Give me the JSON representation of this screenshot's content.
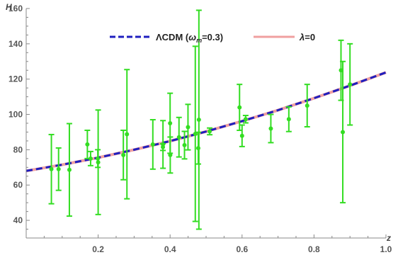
{
  "chart_data": {
    "type": "scatter",
    "title": "",
    "xlabel": "z",
    "ylabel": "H",
    "xlim": [
      0.0,
      1.0
    ],
    "ylim": [
      30,
      160
    ],
    "xticks": [
      0.2,
      0.4,
      0.6,
      0.8,
      1.0
    ],
    "yticks": [
      40,
      60,
      80,
      100,
      120,
      140,
      160
    ],
    "x_tick_labels": [
      "0.2",
      "0.4",
      "0.6",
      "0.8",
      "1.0"
    ],
    "y_tick_labels": [
      "40",
      "60",
      "80",
      "100",
      "120",
      "140",
      "160"
    ],
    "grid": false,
    "legend_position": "top",
    "legend": [
      {
        "label": "ΛCDM (",
        "label_sym": "ω",
        "label_sub": "m",
        "label_tail": "=0.3)",
        "color": "#1f1fbf",
        "style": "dashed"
      },
      {
        "label_sym": "λ",
        "label_tail": "=0",
        "color": "#f0a0a0",
        "style": "solid"
      }
    ],
    "series": [
      {
        "kind": "curve",
        "style": "solid",
        "color": "#f0a0a0",
        "x": [
          0.0,
          0.1,
          0.2,
          0.3,
          0.4,
          0.5,
          0.6,
          0.7,
          0.8,
          0.9,
          1.0
        ],
        "y": [
          68.0,
          71.5,
          75.5,
          80.0,
          84.9,
          90.3,
          96.2,
          102.4,
          109.2,
          116.3,
          123.8
        ]
      },
      {
        "kind": "curve",
        "style": "dashed",
        "color": "#1f1fbf",
        "x": [
          0.0,
          0.1,
          0.2,
          0.3,
          0.4,
          0.5,
          0.6,
          0.7,
          0.8,
          0.9,
          1.0
        ],
        "y": [
          68.0,
          71.5,
          75.5,
          80.0,
          84.9,
          90.3,
          96.2,
          102.4,
          109.2,
          116.3,
          123.8
        ]
      },
      {
        "kind": "points",
        "color": "#33dd22",
        "points": [
          {
            "x": 0.07,
            "y": 69.0,
            "err": 19.6
          },
          {
            "x": 0.09,
            "y": 69.0,
            "err": 12.0
          },
          {
            "x": 0.12,
            "y": 68.6,
            "err": 26.2
          },
          {
            "x": 0.17,
            "y": 83.0,
            "err": 8.0
          },
          {
            "x": 0.179,
            "y": 75.0,
            "err": 4.0
          },
          {
            "x": 0.199,
            "y": 75.0,
            "err": 5.0
          },
          {
            "x": 0.2,
            "y": 72.9,
            "err": 29.6
          },
          {
            "x": 0.27,
            "y": 77.0,
            "err": 14.0
          },
          {
            "x": 0.28,
            "y": 88.8,
            "err": 36.6
          },
          {
            "x": 0.352,
            "y": 83.0,
            "err": 14.0
          },
          {
            "x": 0.38,
            "y": 81.5,
            "err": 1.9
          },
          {
            "x": 0.3802,
            "y": 83.0,
            "err": 13.5
          },
          {
            "x": 0.4,
            "y": 95.0,
            "err": 17.0
          },
          {
            "x": 0.4004,
            "y": 77.0,
            "err": 10.2
          },
          {
            "x": 0.4247,
            "y": 87.1,
            "err": 11.2
          },
          {
            "x": 0.44,
            "y": 82.6,
            "err": 7.8
          },
          {
            "x": 0.4497,
            "y": 92.8,
            "err": 12.9
          },
          {
            "x": 0.47,
            "y": 89.0,
            "err": 49.6
          },
          {
            "x": 0.4783,
            "y": 80.9,
            "err": 9.0
          },
          {
            "x": 0.48,
            "y": 97.0,
            "err": 62.0
          },
          {
            "x": 0.51,
            "y": 90.4,
            "err": 1.9
          },
          {
            "x": 0.593,
            "y": 104.0,
            "err": 13.0
          },
          {
            "x": 0.6,
            "y": 87.9,
            "err": 6.1
          },
          {
            "x": 0.61,
            "y": 97.3,
            "err": 2.1
          },
          {
            "x": 0.68,
            "y": 92.0,
            "err": 8.0
          },
          {
            "x": 0.73,
            "y": 97.3,
            "err": 7.0
          },
          {
            "x": 0.781,
            "y": 105.0,
            "err": 12.0
          },
          {
            "x": 0.875,
            "y": 125.0,
            "err": 17.0
          },
          {
            "x": 0.88,
            "y": 90.0,
            "err": 40.0
          },
          {
            "x": 0.9,
            "y": 117.0,
            "err": 23.0
          }
        ]
      }
    ]
  }
}
